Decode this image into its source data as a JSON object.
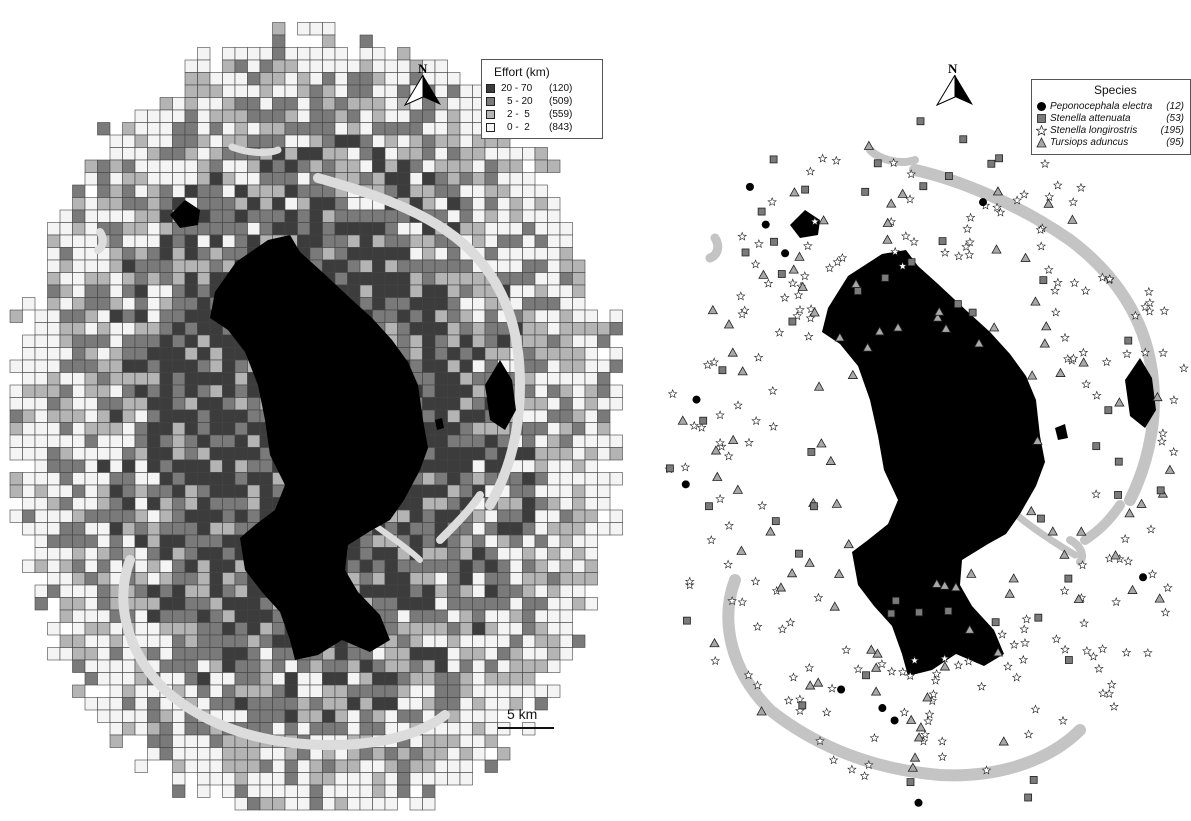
{
  "left_map": {
    "north_label": "N",
    "legend": {
      "title": "Effort (km)",
      "items": [
        {
          "range": "20 - 70",
          "count": "(120)",
          "color": "#3c3c3c"
        },
        {
          "range": "5 - 20",
          "count": "(509)",
          "color": "#7a7a7a"
        },
        {
          "range": "2 -  5",
          "count": "(559)",
          "color": "#b4b4b4"
        },
        {
          "range": "0 -  2",
          "count": "(843)",
          "color": "#f4f4f4"
        }
      ]
    },
    "scale_bar": {
      "label": "5 km"
    }
  },
  "right_map": {
    "north_label": "N",
    "legend": {
      "title": "Species",
      "items": [
        {
          "name": "Peponocephala electra",
          "count": "(12)",
          "marker": "circle",
          "color": "#000000"
        },
        {
          "name": "Stenella attenuata",
          "count": "(53)",
          "marker": "square",
          "color": "#7a7a7a"
        },
        {
          "name": "Stenella longirostris",
          "count": "(195)",
          "marker": "star",
          "color": "#ffffff"
        },
        {
          "name": "Tursiops aduncus",
          "count": "(95)",
          "marker": "triangle",
          "color": "#a8a8a8"
        }
      ]
    }
  },
  "colors": {
    "land": "#000000",
    "reef": "#c4c4c4",
    "grid_line": "#444444"
  }
}
